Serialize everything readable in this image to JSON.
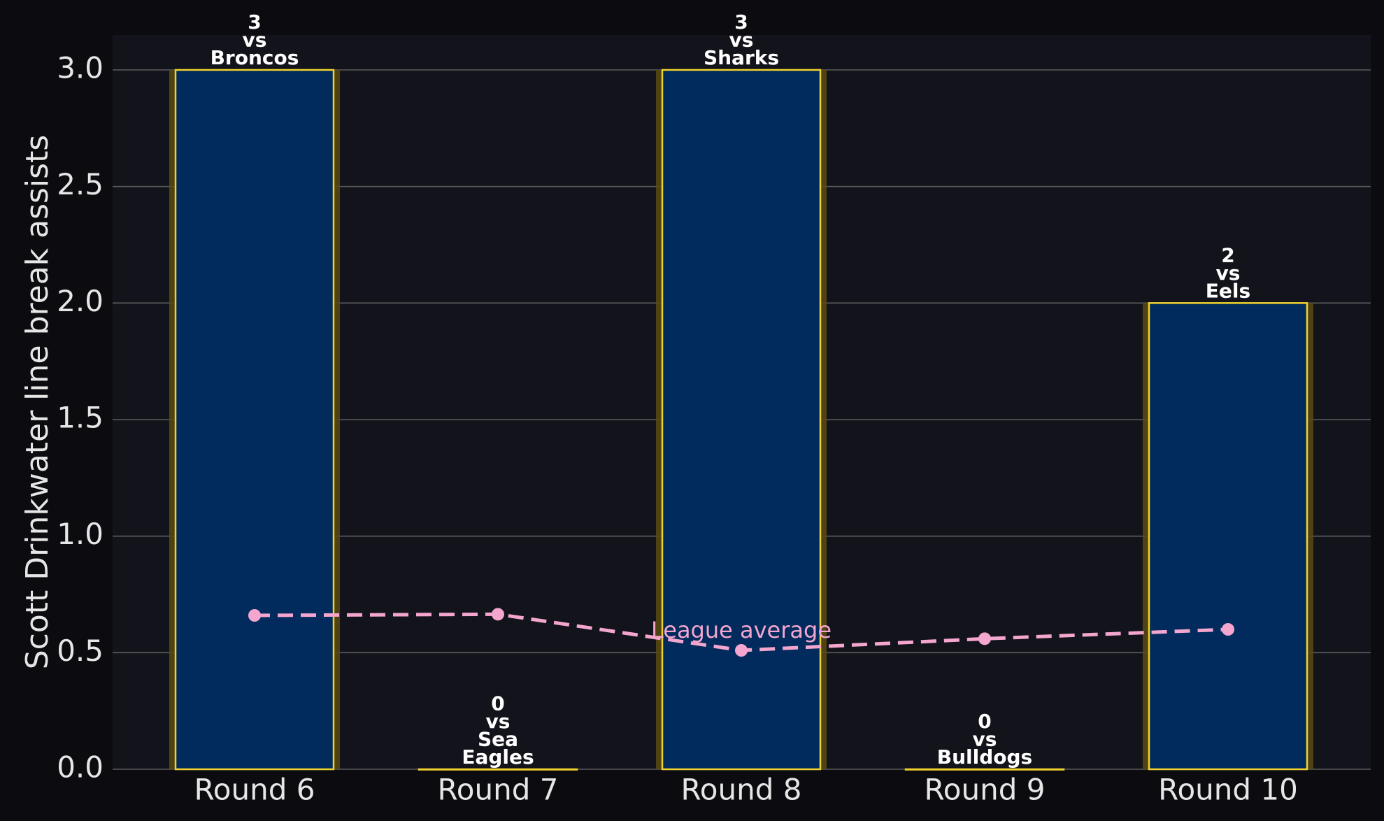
{
  "chart_data": {
    "type": "bar",
    "title": "",
    "xlabel": "",
    "ylabel": "Scott Drinkwater line break assists",
    "categories": [
      "Round 6",
      "Round 7",
      "Round 8",
      "Round 9",
      "Round 10"
    ],
    "values": [
      3,
      0,
      3,
      0,
      2
    ],
    "bar_labels": [
      [
        "3",
        "vs",
        "Broncos"
      ],
      [
        "0",
        "vs",
        "Sea",
        "Eagles"
      ],
      [
        "3",
        "vs",
        "Sharks"
      ],
      [
        "0",
        "vs",
        "Bulldogs"
      ],
      [
        "2",
        "vs",
        "Eels"
      ]
    ],
    "line_series": {
      "name": "League average",
      "values": [
        0.66,
        0.665,
        0.51,
        0.56,
        0.6
      ]
    },
    "ylim": [
      0,
      3.15
    ],
    "yticks": [
      "0.0",
      "0.5",
      "1.0",
      "1.5",
      "2.0",
      "2.5",
      "3.0"
    ],
    "grid": true,
    "colors": {
      "background": "#0c0c10",
      "plot_background": "#13141b",
      "bar_fill": "#002b5c",
      "bar_edge": "#f2d22e",
      "bar_glow": "#5a4a12",
      "line": "#f4a6cf",
      "grid": "#5c5c5c",
      "text": "#e6e6e6"
    }
  }
}
